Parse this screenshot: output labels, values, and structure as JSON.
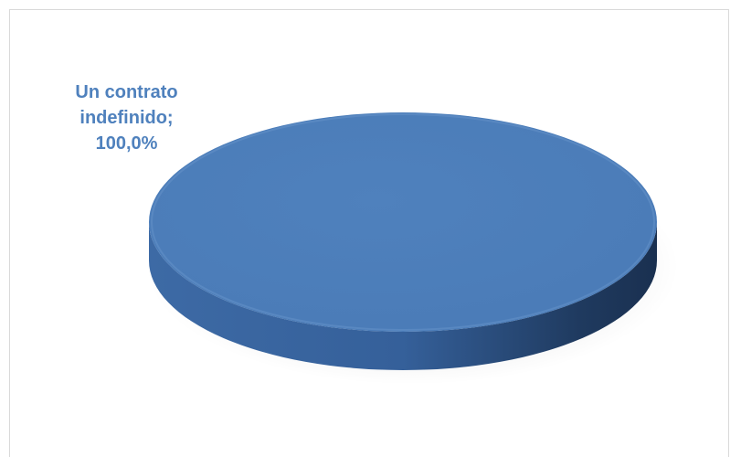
{
  "chart_data": {
    "type": "pie",
    "title": "",
    "categories": [
      "Un contrato indefinido"
    ],
    "values": [
      100.0
    ],
    "data_labels": [
      {
        "line1": "Un contrato",
        "line2": "indefinido;",
        "line3": "100,0%"
      }
    ],
    "legend": "none",
    "style": "3d",
    "colors": {
      "slice": "#4f81bd",
      "label": "#4f81bd"
    }
  }
}
